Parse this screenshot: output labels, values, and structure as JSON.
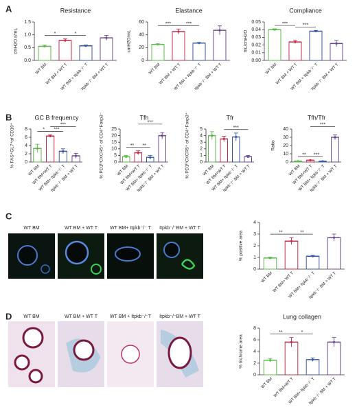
{
  "figure": {
    "panel_labels": [
      "A",
      "B",
      "C",
      "D"
    ],
    "images_c": [
      "WT BM",
      "WT BM + WT T",
      "WT BM+ Itpkb⁻/⁻ T",
      "Itpkb⁻/⁻BM + WT T"
    ],
    "images_d": [
      "WT BM",
      "WT BM + WT T",
      "WT BM + Itpkb⁻/⁻T",
      "Itpkb⁻/⁻BM + WT T"
    ]
  },
  "chart_data": [
    {
      "type": "bar",
      "title": "Resistance",
      "ylabel": "cmH2O.s/mL",
      "categories": [
        "WT BM",
        "WT BM + WT T",
        "WT BM + Itpkb⁻/⁻ T",
        "Itpkb⁻/⁻ BM + WT T"
      ],
      "values": [
        0.55,
        0.78,
        0.57,
        0.88
      ],
      "errors": [
        0.04,
        0.06,
        0.03,
        0.1
      ],
      "colors": [
        "#5cb84a",
        "#c0304a",
        "#3a5aa0",
        "#6b4a8c"
      ],
      "ylim": [
        0,
        1.5
      ],
      "yticks": [
        {
          "value": 0,
          "label": "0.0"
        },
        0.5,
        {
          "value": 1,
          "label": "1.0"
        },
        1.5
      ],
      "annotations": [
        {
          "text": "*",
          "between": [
            0,
            1
          ]
        },
        {
          "text": "*",
          "between": [
            1,
            2
          ]
        }
      ]
    },
    {
      "type": "bar",
      "title": "Elastance",
      "ylabel": "cmH2O/mL",
      "categories": [
        "WT BM",
        "WT BM + WT T",
        "WT BM + Itpkb⁻/⁻ T",
        "Itpkb⁻/⁻ BM + WT T"
      ],
      "values": [
        25,
        45,
        27,
        47
      ],
      "errors": [
        1,
        4,
        1,
        7
      ],
      "colors": [
        "#5cb84a",
        "#c0304a",
        "#3a5aa0",
        "#6b4a8c"
      ],
      "ylim": [
        0,
        60
      ],
      "yticks": [
        0,
        20,
        40,
        60
      ],
      "annotations": [
        {
          "text": "***",
          "between": [
            0,
            1
          ]
        },
        {
          "text": "***",
          "between": [
            1,
            2
          ]
        }
      ]
    },
    {
      "type": "bar",
      "title": "Compliance",
      "ylabel": "mL/cmH2O",
      "categories": [
        "WT BM",
        "WT BM + WT T",
        "WT BM + Itpkb⁻/⁻ T",
        "Itpkb⁻/⁻ BM + WT T"
      ],
      "values": [
        0.04,
        0.024,
        0.038,
        0.022
      ],
      "errors": [
        0.001,
        0.002,
        0.001,
        0.004
      ],
      "colors": [
        "#5cb84a",
        "#c0304a",
        "#3a5aa0",
        "#6b4a8c"
      ],
      "ylim": [
        0,
        0.05
      ],
      "yticks": [
        {
          "value": 0,
          "label": "0.00"
        },
        0.01,
        0.02,
        0.03,
        0.04,
        0.05
      ],
      "annotations": [
        {
          "text": "***",
          "between": [
            0,
            1
          ]
        },
        {
          "text": "***",
          "between": [
            1,
            2
          ]
        }
      ]
    },
    {
      "type": "bar",
      "title": "GC B frequency",
      "ylabel": "% FAS⁺GL7⁺of CD19⁺",
      "categories": [
        "WT BM",
        "WT BM+WT T",
        "WT BM+ Itpkb⁻/⁻ T",
        "Itpkb⁻/⁻ BM + WT T"
      ],
      "values": [
        3.3,
        6.3,
        2.6,
        1.5
      ],
      "errors": [
        1,
        0.3,
        0.6,
        0.6
      ],
      "colors": [
        "#5cb84a",
        "#c0304a",
        "#3a5aa0",
        "#6b4a8c"
      ],
      "ylim": [
        0,
        8
      ],
      "yticks": [
        0,
        2,
        4,
        6,
        8
      ],
      "annotations": [
        {
          "text": "*",
          "between": [
            0,
            1
          ]
        },
        {
          "text": "***",
          "between": [
            1,
            2
          ]
        },
        {
          "text": "***",
          "between": [
            1,
            3
          ]
        }
      ]
    },
    {
      "type": "bar",
      "title": "Tfh",
      "ylabel": "% PD1ʰⁱCXCR5⁺ of CD4⁺Foxp3⁻",
      "categories": [
        "WT BM",
        "WT BM+WT T",
        "WT BM+ Itpkb⁻/⁻ T",
        "Itpkb⁻/⁻ BM + WT T"
      ],
      "values": [
        4,
        7,
        3.5,
        20
      ],
      "errors": [
        1,
        1.5,
        1.5,
        2.5
      ],
      "colors": [
        "#5cb84a",
        "#c0304a",
        "#3a5aa0",
        "#6b4a8c"
      ],
      "ylim": [
        0,
        25
      ],
      "yticks": [
        0,
        5,
        10,
        15,
        20,
        25
      ],
      "annotations": [
        {
          "text": "**",
          "between": [
            0,
            1
          ]
        },
        {
          "text": "**",
          "between": [
            1,
            2
          ]
        },
        {
          "text": "***",
          "between": [
            1,
            3
          ]
        }
      ]
    },
    {
      "type": "bar",
      "title": "Tfr",
      "ylabel": "% PD1ʰⁱCXCR5⁺ of CD4⁺Foxp3⁺",
      "categories": [
        "WT BM",
        "WT BM+WT T",
        "WT BM+ Itpkb⁻/⁻ T",
        "Itpkb⁻/⁻ BM + WT T"
      ],
      "values": [
        4,
        3.5,
        3.8,
        0.8
      ],
      "errors": [
        0.6,
        0.4,
        0.6,
        0.2
      ],
      "colors": [
        "#5cb84a",
        "#c0304a",
        "#3a5aa0",
        "#6b4a8c"
      ],
      "ylim": [
        0,
        5
      ],
      "yticks": [
        0,
        1,
        2,
        3,
        4,
        5
      ],
      "annotations": [
        {
          "text": "***",
          "between": [
            1,
            3
          ]
        }
      ]
    },
    {
      "type": "bar",
      "title": "Tfh/Tfr",
      "ylabel": "Ratio",
      "categories": [
        "WT BM",
        "WT BM+WT T",
        "WT BM+ Itpkb⁻/⁻ T",
        "Itpkb⁻/⁻ BM + WT T"
      ],
      "values": [
        1,
        2.2,
        0.9,
        30
      ],
      "errors": [
        0.1,
        0.3,
        0.1,
        3
      ],
      "colors": [
        "#5cb84a",
        "#c0304a",
        "#3a5aa0",
        "#6b4a8c"
      ],
      "ylim": [
        0,
        40
      ],
      "yticks": [
        0,
        10,
        20,
        30,
        40
      ],
      "annotations": [
        {
          "text": "**",
          "between": [
            0,
            1
          ]
        },
        {
          "text": "***",
          "between": [
            1,
            2
          ]
        },
        {
          "text": "***",
          "between": [
            1,
            3
          ]
        }
      ]
    },
    {
      "type": "bar",
      "ylabel": "% positive area",
      "categories": [
        "WT BM",
        "WT BM+ WT T",
        "WT BM+ Itpkb⁻/⁻ T",
        "Itpkb⁻/⁻ BM + WT T"
      ],
      "values": [
        0.95,
        2.4,
        1.1,
        2.7
      ],
      "errors": [
        0.08,
        0.3,
        0.08,
        0.3
      ],
      "colors": [
        "#5cb84a",
        "#c0304a",
        "#3a5aa0",
        "#6b4a8c"
      ],
      "ylim": [
        0,
        4
      ],
      "yticks": [
        0,
        1,
        2,
        3,
        4
      ],
      "annotations": [
        {
          "text": "**",
          "between": [
            0,
            1
          ]
        },
        {
          "text": "**",
          "between": [
            1,
            2
          ]
        }
      ]
    },
    {
      "type": "bar",
      "title": "Lung collagen",
      "ylabel": "% trichrome area",
      "categories": [
        "WT BM",
        "WT BM+WT T",
        "WT BM+ Itpkb⁻/⁻ T",
        "Itpkb⁻/⁻ BM + WT T"
      ],
      "values": [
        2.5,
        5.6,
        2.6,
        5.6
      ],
      "errors": [
        0.3,
        0.8,
        0.3,
        0.8
      ],
      "colors": [
        "#5cb84a",
        "#c0304a",
        "#3a5aa0",
        "#6b4a8c"
      ],
      "ylim": [
        0,
        8
      ],
      "yticks": [
        0,
        2,
        4,
        6,
        8
      ],
      "annotations": [
        {
          "text": "**",
          "between": [
            0,
            1
          ]
        },
        {
          "text": "*",
          "between": [
            1,
            2
          ]
        }
      ]
    }
  ]
}
